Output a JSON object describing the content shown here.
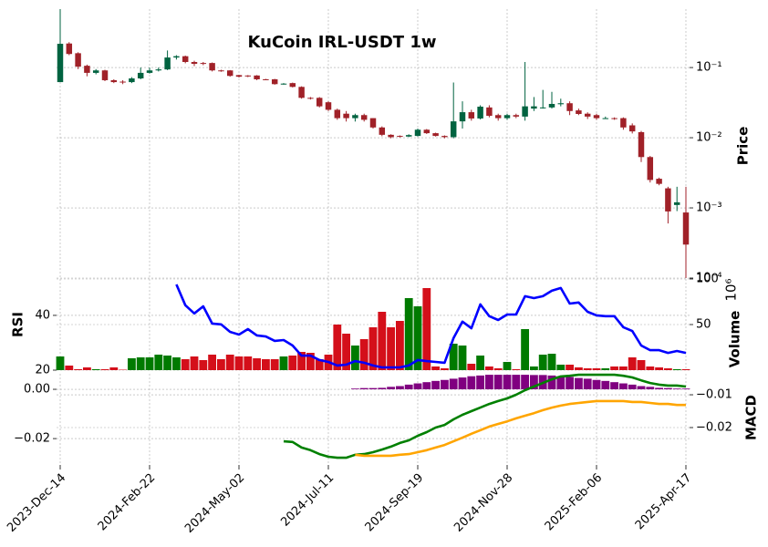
{
  "chart_data": [
    {
      "type": "candlestick",
      "title": "KuCoin IRL-USDT 1w",
      "ylabel": "Price",
      "log": true,
      "grid": true,
      "ylim": [
        0.0001,
        0.68
      ],
      "yticks": [
        {
          "value": 0.1,
          "label": "10⁻¹"
        },
        {
          "value": 0.01,
          "label": "10⁻²"
        },
        {
          "value": 0.001,
          "label": "10⁻³"
        },
        {
          "value": 0.0001,
          "label": "10⁻⁴"
        }
      ],
      "up_color": "#006340",
      "down_color": "#a02128",
      "open": [
        0.062,
        0.22,
        0.16,
        0.106,
        0.084,
        0.091,
        0.066,
        0.063,
        0.062,
        0.07,
        0.084,
        0.091,
        0.094,
        0.139,
        0.145,
        0.12,
        0.116,
        0.116,
        0.091,
        0.091,
        0.078,
        0.077,
        0.077,
        0.068,
        0.068,
        0.058,
        0.06,
        0.053,
        0.037,
        0.037,
        0.032,
        0.025,
        0.022,
        0.019,
        0.021,
        0.019,
        0.014,
        0.011,
        0.0106,
        0.0104,
        0.0106,
        0.013,
        0.0116,
        0.0106,
        0.0102,
        0.0171,
        0.0231,
        0.0188,
        0.027,
        0.021,
        0.019,
        0.021,
        0.02,
        0.026,
        0.027,
        0.027,
        0.03,
        0.031,
        0.0245,
        0.022,
        0.021,
        0.019,
        0.019,
        0.019,
        0.015,
        0.012,
        0.0053,
        0.0026,
        0.0019,
        0.0011,
        0.00086
      ],
      "high": [
        0.68,
        0.23,
        0.165,
        0.11,
        0.095,
        0.093,
        0.068,
        0.066,
        0.073,
        0.1,
        0.1,
        0.1,
        0.175,
        0.15,
        0.148,
        0.125,
        0.12,
        0.118,
        0.093,
        0.092,
        0.079,
        0.078,
        0.078,
        0.069,
        0.069,
        0.06,
        0.061,
        0.054,
        0.038,
        0.038,
        0.033,
        0.026,
        0.024,
        0.022,
        0.022,
        0.019,
        0.0145,
        0.0112,
        0.0108,
        0.0112,
        0.0135,
        0.0133,
        0.0118,
        0.0108,
        0.0612,
        0.033,
        0.025,
        0.029,
        0.029,
        0.022,
        0.022,
        0.022,
        0.12,
        0.038,
        0.048,
        0.045,
        0.036,
        0.033,
        0.026,
        0.023,
        0.022,
        0.02,
        0.0195,
        0.0195,
        0.016,
        0.0125,
        0.0055,
        0.0027,
        0.002,
        0.002,
        0.002
      ],
      "low": [
        0.062,
        0.15,
        0.095,
        0.075,
        0.08,
        0.064,
        0.06,
        0.058,
        0.06,
        0.068,
        0.082,
        0.088,
        0.092,
        0.13,
        0.115,
        0.105,
        0.108,
        0.088,
        0.087,
        0.074,
        0.072,
        0.073,
        0.066,
        0.066,
        0.057,
        0.057,
        0.052,
        0.036,
        0.035,
        0.027,
        0.024,
        0.018,
        0.017,
        0.017,
        0.017,
        0.0135,
        0.0105,
        0.0098,
        0.0101,
        0.0102,
        0.0104,
        0.0113,
        0.0104,
        0.0098,
        0.0098,
        0.0135,
        0.0175,
        0.0182,
        0.0195,
        0.0175,
        0.018,
        0.019,
        0.0175,
        0.024,
        0.026,
        0.026,
        0.028,
        0.021,
        0.021,
        0.0185,
        0.018,
        0.0185,
        0.018,
        0.013,
        0.0115,
        0.0045,
        0.0023,
        0.0021,
        0.0006,
        0.0009,
        0.0001
      ],
      "close": [
        0.218,
        0.156,
        0.103,
        0.084,
        0.091,
        0.066,
        0.062,
        0.062,
        0.07,
        0.084,
        0.091,
        0.094,
        0.139,
        0.145,
        0.12,
        0.113,
        0.113,
        0.091,
        0.089,
        0.076,
        0.074,
        0.075,
        0.068,
        0.067,
        0.058,
        0.059,
        0.053,
        0.037,
        0.036,
        0.028,
        0.025,
        0.019,
        0.019,
        0.021,
        0.018,
        0.014,
        0.011,
        0.0102,
        0.0104,
        0.0109,
        0.013,
        0.0116,
        0.0106,
        0.0102,
        0.0171,
        0.0231,
        0.0188,
        0.0277,
        0.0205,
        0.019,
        0.021,
        0.02,
        0.028,
        0.028,
        0.027,
        0.0303,
        0.031,
        0.024,
        0.0218,
        0.02,
        0.019,
        0.019,
        0.0188,
        0.014,
        0.0123,
        0.0053,
        0.0025,
        0.0022,
        0.00089,
        0.0012,
        0.0003
      ]
    },
    {
      "type": "bar",
      "ylabel": "Volume",
      "yscale_label": "10⁶",
      "y2label": "RSI",
      "grid": true,
      "ylim": [
        0,
        100
      ],
      "yticks": [
        50,
        100
      ],
      "y2lim": [
        20,
        53.3
      ],
      "y2ticks": [
        20,
        40
      ],
      "up_color": "#007a00",
      "down_color": "#d40f1a",
      "values": [
        15,
        5,
        1,
        3,
        1,
        1,
        3,
        0.5,
        13,
        14,
        14,
        17,
        16,
        14,
        12,
        15,
        11,
        17,
        12,
        17,
        15,
        15,
        13,
        12,
        12,
        15,
        16,
        20,
        19,
        12,
        17,
        50,
        40,
        27,
        34,
        47,
        64,
        47,
        54,
        79,
        70,
        90,
        4,
        2,
        29,
        27,
        7,
        16,
        4,
        2,
        9,
        1,
        45,
        4,
        17,
        18,
        6,
        6,
        3,
        2,
        2,
        2,
        4,
        4,
        14,
        11,
        4,
        3,
        2,
        1,
        1
      ],
      "series": [
        {
          "color": "#0000ff",
          "axis": "y2",
          "values": [
            null,
            null,
            null,
            null,
            null,
            null,
            null,
            null,
            null,
            null,
            null,
            null,
            null,
            51.3,
            43.7,
            40.7,
            43.3,
            37,
            36.7,
            34,
            33,
            35,
            32.7,
            32.3,
            30.7,
            31,
            29,
            25.3,
            25.3,
            23.7,
            23,
            21.7,
            22,
            23.3,
            22.7,
            21.7,
            21,
            21,
            21,
            21.7,
            23.7,
            23.3,
            23,
            22.7,
            31.7,
            37.7,
            35.3,
            44,
            39.7,
            38.3,
            40.3,
            40.3,
            47,
            46.3,
            47,
            49,
            50,
            44.3,
            44.7,
            41.3,
            40,
            39.7,
            39.7,
            35.7,
            34.3,
            29,
            27.3,
            27.3,
            26.3,
            27,
            26.3
          ]
        }
      ]
    },
    {
      "type": "line",
      "ylabel": "MACD",
      "grid": true,
      "xlim": [
        0,
        70
      ],
      "xticks": [
        {
          "value": 0,
          "label": "2023-Dec-14"
        },
        {
          "value": 10,
          "label": "2024-Feb-22"
        },
        {
          "value": 20,
          "label": "2024-May-02"
        },
        {
          "value": 30,
          "label": "2024-Jul-11"
        },
        {
          "value": 40,
          "label": "2024-Sep-19"
        },
        {
          "value": 50,
          "label": "2024-Nov-28"
        },
        {
          "value": 60,
          "label": "2025-Feb-06"
        },
        {
          "value": 70,
          "label": "2025-Apr-17"
        }
      ],
      "ylim": [
        -0.0307,
        0.0063
      ],
      "yticks": [
        {
          "value": 0,
          "label": "0.00"
        },
        {
          "value": -0.02,
          "label": "−0.02"
        }
      ],
      "y2lim": [
        -0.0314,
        -0.0036
      ],
      "y2ticks": [
        {
          "value": -0.01,
          "label": "−0.01"
        },
        {
          "value": -0.02,
          "label": "−0.02"
        }
      ],
      "histogram": {
        "color": "#800080",
        "values": [
          null,
          null,
          null,
          null,
          null,
          null,
          null,
          null,
          null,
          null,
          null,
          null,
          null,
          null,
          null,
          null,
          null,
          null,
          null,
          null,
          null,
          null,
          null,
          null,
          null,
          null,
          null,
          null,
          null,
          null,
          null,
          null,
          null,
          0.0003,
          0.0005,
          0.0005,
          0.0006,
          0.001,
          0.0013,
          0.0019,
          0.0024,
          0.0029,
          0.0034,
          0.0038,
          0.0043,
          0.0048,
          0.0053,
          0.0056,
          0.0059,
          0.0059,
          0.0059,
          0.0059,
          0.0059,
          0.0058,
          0.0058,
          0.0056,
          0.0053,
          0.005,
          0.0046,
          0.0043,
          0.0038,
          0.0034,
          0.0029,
          0.0024,
          0.0019,
          0.0013,
          0.001,
          0.0006,
          0.0005,
          0.0003,
          0.0003
        ]
      },
      "series": [
        {
          "color": "#008000",
          "axis": "y2",
          "values": [
            null,
            null,
            null,
            null,
            null,
            null,
            null,
            null,
            null,
            null,
            null,
            null,
            null,
            null,
            null,
            null,
            null,
            null,
            null,
            null,
            null,
            null,
            null,
            null,
            null,
            -0.0242,
            -0.0244,
            -0.0261,
            -0.0269,
            -0.0281,
            -0.0289,
            -0.0292,
            -0.0292,
            -0.0283,
            -0.0281,
            -0.0275,
            -0.0267,
            -0.0258,
            -0.0247,
            -0.0239,
            -0.0225,
            -0.0214,
            -0.02,
            -0.0192,
            -0.0175,
            -0.0161,
            -0.015,
            -0.0139,
            -0.0128,
            -0.0119,
            -0.0111,
            -0.01,
            -0.0086,
            -0.0075,
            -0.0064,
            -0.0053,
            -0.0044,
            -0.0042,
            -0.0039,
            -0.0039,
            -0.0039,
            -0.0039,
            -0.0039,
            -0.0042,
            -0.0047,
            -0.0056,
            -0.0064,
            -0.0069,
            -0.0072,
            -0.0072,
            -0.0075
          ]
        },
        {
          "color": "#ffa500",
          "axis": "y2",
          "values": [
            null,
            null,
            null,
            null,
            null,
            null,
            null,
            null,
            null,
            null,
            null,
            null,
            null,
            null,
            null,
            null,
            null,
            null,
            null,
            null,
            null,
            null,
            null,
            null,
            null,
            null,
            null,
            null,
            null,
            null,
            null,
            null,
            null,
            -0.0283,
            -0.0286,
            -0.0286,
            -0.0286,
            -0.0286,
            -0.0283,
            -0.0281,
            -0.0275,
            -0.0269,
            -0.0261,
            -0.0253,
            -0.0242,
            -0.0231,
            -0.0219,
            -0.0208,
            -0.0197,
            -0.0189,
            -0.0181,
            -0.0172,
            -0.0164,
            -0.0156,
            -0.0147,
            -0.0139,
            -0.0133,
            -0.0128,
            -0.0125,
            -0.0122,
            -0.0119,
            -0.0119,
            -0.0119,
            -0.0119,
            -0.0122,
            -0.0122,
            -0.0125,
            -0.0128,
            -0.0128,
            -0.0131,
            -0.0131
          ]
        }
      ]
    }
  ]
}
